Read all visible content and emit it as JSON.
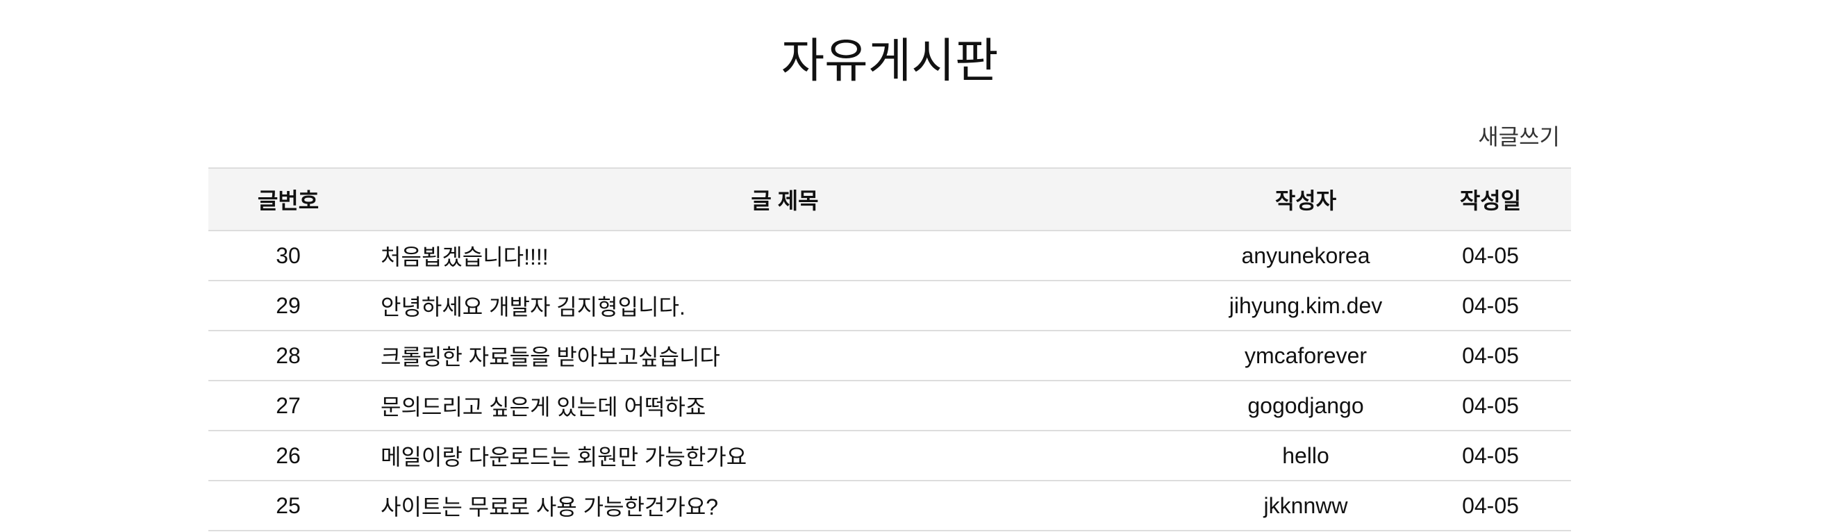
{
  "page": {
    "title": "자유게시판",
    "write_label": "새글쓰기"
  },
  "table": {
    "headers": {
      "number": "글번호",
      "title": "글 제목",
      "author": "작성자",
      "date": "작성일"
    },
    "rows": [
      {
        "number": "30",
        "title": "처음뵙겠습니다!!!!",
        "author": "anyunekorea",
        "date": "04-05"
      },
      {
        "number": "29",
        "title": "안녕하세요 개발자 김지형입니다.",
        "author": "jihyung.kim.dev",
        "date": "04-05"
      },
      {
        "number": "28",
        "title": "크롤링한 자료들을 받아보고싶습니다",
        "author": "ymcaforever",
        "date": "04-05"
      },
      {
        "number": "27",
        "title": "문의드리고 싶은게 있는데 어떡하죠",
        "author": "gogodjango",
        "date": "04-05"
      },
      {
        "number": "26",
        "title": "메일이랑 다운로드는 회원만 가능한가요",
        "author": "hello",
        "date": "04-05"
      },
      {
        "number": "25",
        "title": "사이트는 무료로 사용 가능한건가요?",
        "author": "jkknnww",
        "date": "04-05"
      }
    ]
  }
}
